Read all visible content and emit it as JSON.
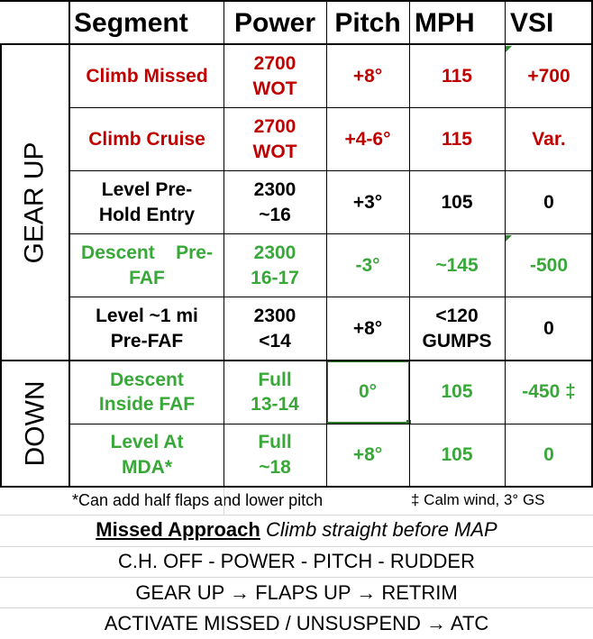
{
  "headers": {
    "segment": "Segment",
    "power": "Power",
    "pitch": "Pitch",
    "mph": "MPH",
    "vsi": "VSI"
  },
  "groups": {
    "gear_up": "GEAR UP",
    "down": "DOWN"
  },
  "rows": [
    {
      "segment": [
        "Climb Missed"
      ],
      "power": [
        "2700",
        "WOT"
      ],
      "pitch": "+8°",
      "mph": [
        "115"
      ],
      "vsi": "+700",
      "color": "red"
    },
    {
      "segment": [
        "Climb Cruise"
      ],
      "power": [
        "2700",
        "WOT"
      ],
      "pitch": "+4-6°",
      "mph": [
        "115"
      ],
      "vsi": "Var.",
      "color": "red"
    },
    {
      "segment": [
        "Level Pre-",
        "Hold Entry"
      ],
      "power": [
        "2300",
        "~16"
      ],
      "pitch": "+3°",
      "mph": [
        "105"
      ],
      "vsi": "0",
      "color": "black"
    },
    {
      "segment": [
        "Descent    Pre-",
        "FAF"
      ],
      "power": [
        "2300",
        "16-17"
      ],
      "pitch": "-3°",
      "mph": [
        "~145"
      ],
      "vsi": "-500",
      "color": "green"
    },
    {
      "segment": [
        "Level ~1 mi",
        "Pre-FAF"
      ],
      "power": [
        "2300",
        "<14"
      ],
      "pitch": "+8°",
      "mph": [
        "<120",
        "GUMPS"
      ],
      "vsi": "0",
      "color": "black"
    },
    {
      "segment": [
        "Descent",
        "Inside FAF"
      ],
      "power": [
        "Full",
        "13-14"
      ],
      "pitch": "0°",
      "mph": [
        "105"
      ],
      "vsi": "-450 ‡",
      "color": "green"
    },
    {
      "segment": [
        "Level At",
        "MDA*"
      ],
      "power": [
        "Full",
        "~18"
      ],
      "pitch": "+8°",
      "mph": [
        "105"
      ],
      "vsi": "0",
      "color": "green"
    }
  ],
  "notes": {
    "flaps": "*Can add half flaps and lower pitch",
    "wind": "‡ Calm wind, 3° GS"
  },
  "missed": {
    "title": "Missed Approach",
    "subtitle": "Climb straight before MAP",
    "line1": "C.H. OFF - POWER - PITCH - RUDDER",
    "line2": "GEAR UP → FLAPS UP → RETRIM",
    "line3": "ACTIVATE MISSED / UNSUSPEND → ATC"
  }
}
